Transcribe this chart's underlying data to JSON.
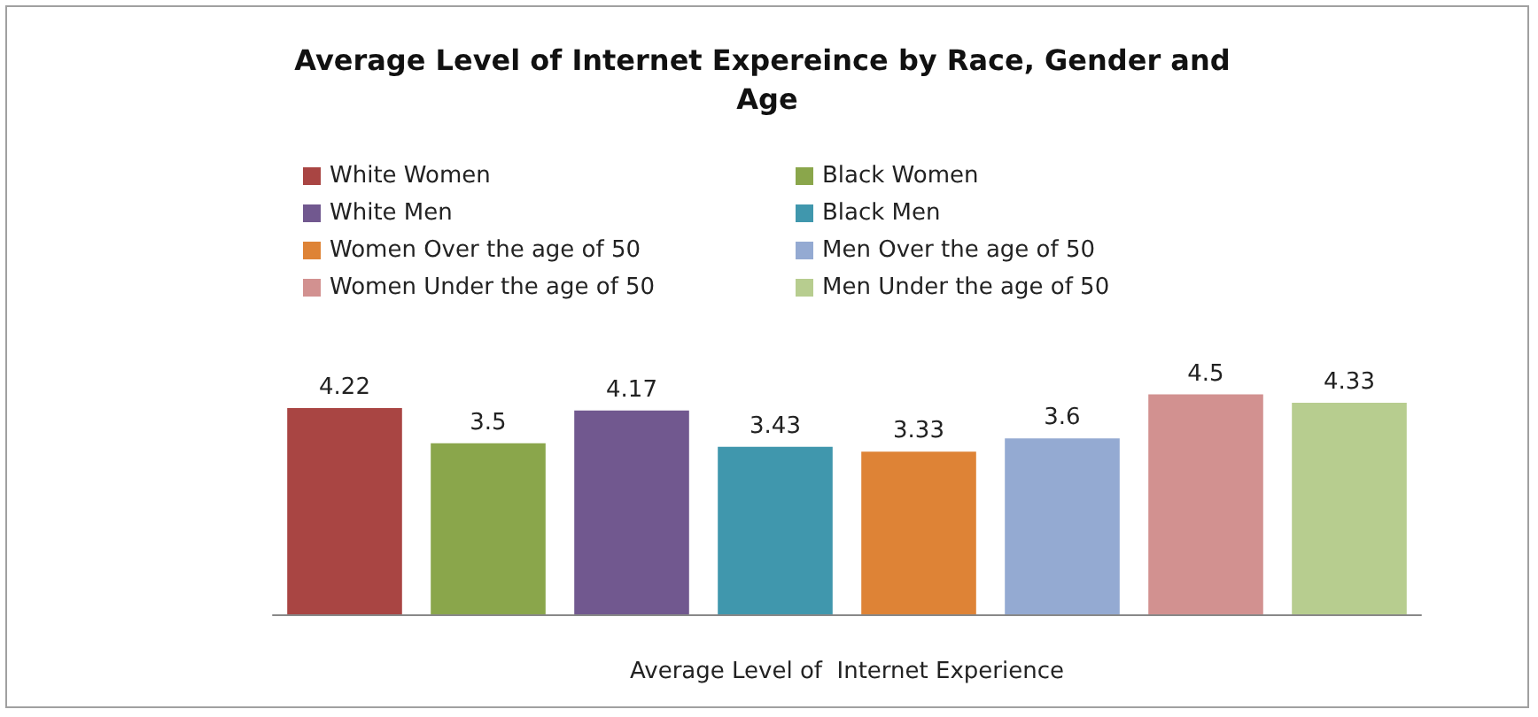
{
  "chart_data": {
    "type": "bar",
    "title": "Average Level of Internet Expereince by Race, Gender and Age",
    "xlabel": "Average Level of  Internet Experience",
    "categories": [
      null,
      null,
      null,
      null,
      null,
      null,
      null,
      null
    ],
    "stacked": true,
    "series": [
      {
        "name": "White Women",
        "color": "#a94543",
        "values": [
          4.22,
          null,
          null,
          null,
          null,
          null,
          null,
          null
        ]
      },
      {
        "name": "Black Women",
        "color": "#8aa64b",
        "values": [
          null,
          3.5,
          null,
          null,
          null,
          null,
          null,
          null
        ]
      },
      {
        "name": "White Men",
        "color": "#71588f",
        "values": [
          null,
          null,
          4.17,
          null,
          null,
          null,
          null,
          null
        ]
      },
      {
        "name": "Black Men",
        "color": "#4097ad",
        "values": [
          null,
          null,
          null,
          3.43,
          null,
          null,
          null,
          null
        ]
      },
      {
        "name": "Women Over the age of 50",
        "color": "#de8336",
        "values": [
          null,
          null,
          null,
          null,
          3.33,
          null,
          null,
          null
        ]
      },
      {
        "name": "Men Over the age of 50",
        "color": "#94aad2",
        "values": [
          null,
          null,
          null,
          null,
          null,
          3.6,
          null,
          null
        ]
      },
      {
        "name": "Women Under the age of 50",
        "color": "#d29190",
        "values": [
          null,
          null,
          null,
          null,
          null,
          null,
          4.5,
          null
        ]
      },
      {
        "name": "Men Under the age of 50",
        "color": "#b7cd8f",
        "values": [
          null,
          null,
          null,
          null,
          null,
          null,
          null,
          4.33
        ]
      }
    ],
    "data_labels": true,
    "legend": "top"
  }
}
